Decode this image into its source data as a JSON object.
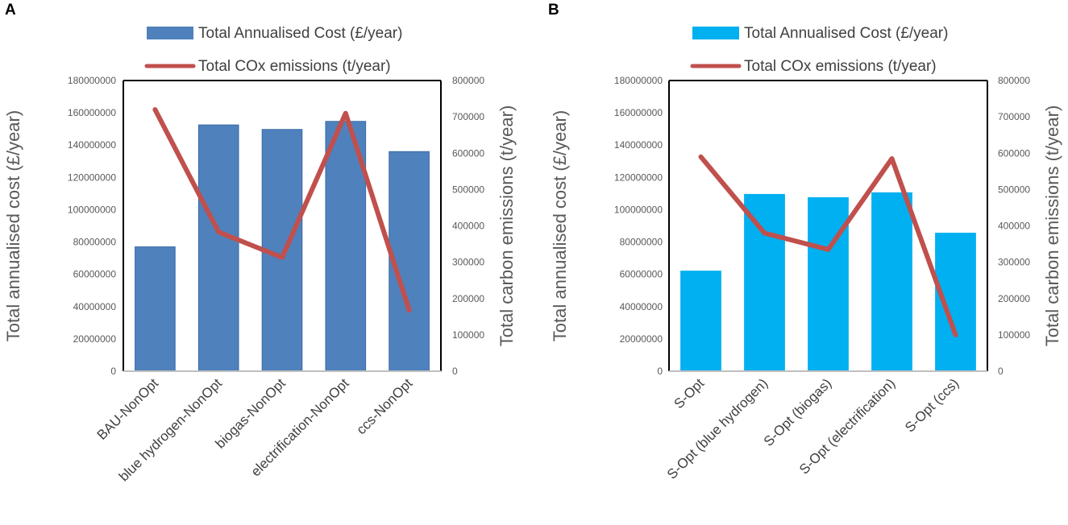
{
  "chart_data": [
    {
      "panel_label": "A",
      "type": "bar+line",
      "bar_color": "#4f81bd",
      "bar_stroke": "#3a6aa3",
      "line_color": "#c0504d",
      "categories": [
        "BAU-NonOpt",
        "blue hydrogen-NonOpt",
        "biogas-NonOpt",
        "electrification-NonOpt",
        "ccs-NonOpt"
      ],
      "series": [
        {
          "name": "Total Annualised Cost (£/year)",
          "type": "bar",
          "axis": "left",
          "values": [
            77000000,
            152500000,
            149700000,
            154700000,
            136000000
          ]
        },
        {
          "name": "Total COx emissions (t/year)",
          "type": "line",
          "axis": "right",
          "values": [
            720000,
            383000,
            313000,
            710000,
            168000
          ]
        }
      ],
      "ylabel": "Total annualised cost (£/year)",
      "y2label": "Total carbon emissions (t/year)",
      "ylim": [
        0,
        180000000
      ],
      "y2lim": [
        0,
        800000
      ],
      "yticks": [
        "0",
        "20000000",
        "40000000",
        "60000000",
        "80000000",
        "100000000",
        "120000000",
        "140000000",
        "160000000",
        "180000000"
      ],
      "y2ticks": [
        "0",
        "100000",
        "200000",
        "300000",
        "400000",
        "500000",
        "600000",
        "700000",
        "800000"
      ]
    },
    {
      "panel_label": "B",
      "type": "bar+line",
      "bar_color": "#00b0f0",
      "bar_stroke": "#00b0f0",
      "line_color": "#c0504d",
      "categories": [
        "S-Opt",
        "S-Opt (blue hydrogen)",
        "S-Opt (biogas)",
        "S-Opt (electrification)",
        "S-Opt (ccs)"
      ],
      "series": [
        {
          "name": "Total Annualised Cost (£/year)",
          "type": "bar",
          "axis": "left",
          "values": [
            62000000,
            109500000,
            107500000,
            110500000,
            85500000
          ]
        },
        {
          "name": "Total COx emissions (t/year)",
          "type": "line",
          "axis": "right",
          "values": [
            590000,
            380000,
            335000,
            585000,
            100000
          ]
        }
      ],
      "ylabel": "Total annualised cost (£/year)",
      "y2label": "Total carbon emissions (t/year)",
      "ylim": [
        0,
        180000000
      ],
      "y2lim": [
        0,
        800000
      ],
      "yticks": [
        "0",
        "20000000",
        "40000000",
        "60000000",
        "80000000",
        "100000000",
        "120000000",
        "140000000",
        "160000000",
        "180000000"
      ],
      "y2ticks": [
        "0",
        "100000",
        "200000",
        "300000",
        "400000",
        "500000",
        "600000",
        "700000",
        "800000"
      ]
    }
  ]
}
